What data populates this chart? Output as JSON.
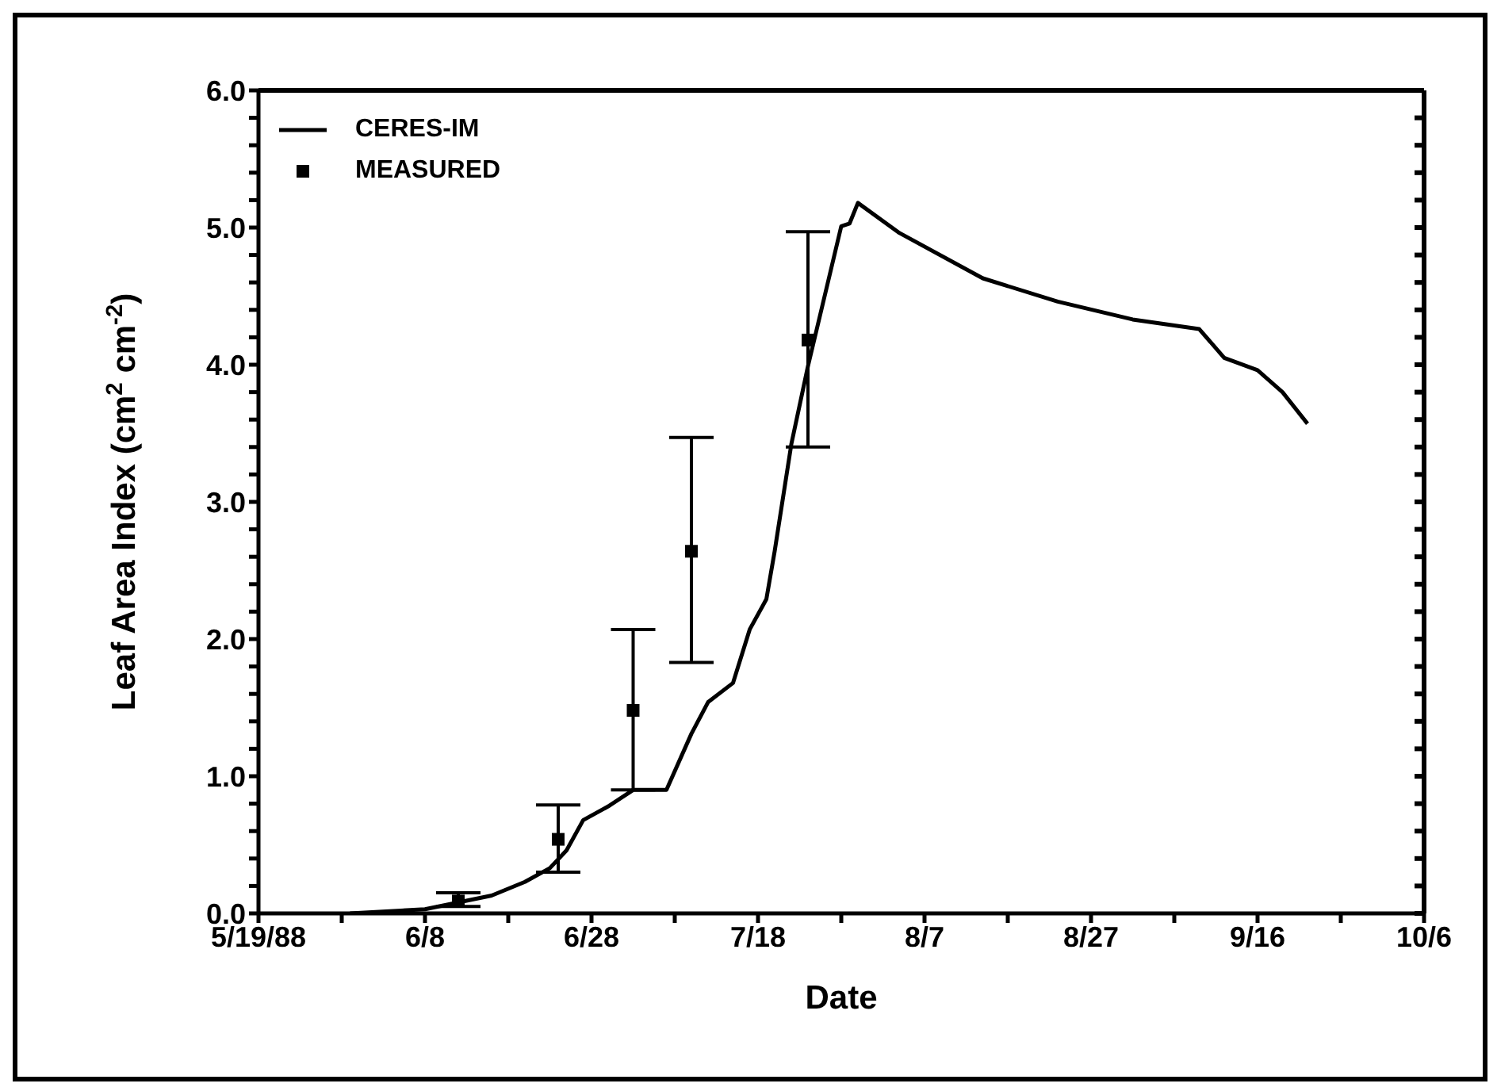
{
  "chart_data": {
    "type": "line",
    "xlabel": "Date",
    "ylabel": "Leaf Area Index (cm$^{2}$ cm$^{-2}$)",
    "xlim": [
      "1988-05-19",
      "1988-10-06"
    ],
    "xticks": [
      {
        "value": "1988-05-19",
        "label": "5/19/88"
      },
      {
        "value": "1988-05-29",
        "label": null
      },
      {
        "value": "1988-06-08",
        "label": "6/8"
      },
      {
        "value": "1988-06-18",
        "label": null
      },
      {
        "value": "1988-06-28",
        "label": "6/28"
      },
      {
        "value": "1988-07-08",
        "label": null
      },
      {
        "value": "1988-07-18",
        "label": "7/18"
      },
      {
        "value": "1988-07-28",
        "label": null
      },
      {
        "value": "1988-08-07",
        "label": "8/7"
      },
      {
        "value": "1988-08-17",
        "label": null
      },
      {
        "value": "1988-08-27",
        "label": "8/27"
      },
      {
        "value": "1988-09-06",
        "label": null
      },
      {
        "value": "1988-09-16",
        "label": "9/16"
      },
      {
        "value": "1988-09-26",
        "label": null
      },
      {
        "value": "1988-10-06",
        "label": "10/6"
      }
    ],
    "ylim": [
      0,
      6
    ],
    "yticks": [
      {
        "value": 0,
        "label": "0.0"
      },
      {
        "value": 0.2,
        "label": null
      },
      {
        "value": 0.4,
        "label": null
      },
      {
        "value": 0.6,
        "label": null
      },
      {
        "value": 0.8,
        "label": null
      },
      {
        "value": 1,
        "label": "1.0"
      },
      {
        "value": 1.2,
        "label": null
      },
      {
        "value": 1.4,
        "label": null
      },
      {
        "value": 1.6,
        "label": null
      },
      {
        "value": 1.8,
        "label": null
      },
      {
        "value": 2,
        "label": "2.0"
      },
      {
        "value": 2.2,
        "label": null
      },
      {
        "value": 2.4,
        "label": null
      },
      {
        "value": 2.6,
        "label": null
      },
      {
        "value": 2.8,
        "label": null
      },
      {
        "value": 3,
        "label": "3.0"
      },
      {
        "value": 3.2,
        "label": null
      },
      {
        "value": 3.4,
        "label": null
      },
      {
        "value": 3.6,
        "label": null
      },
      {
        "value": 3.8,
        "label": null
      },
      {
        "value": 4,
        "label": "4.0"
      },
      {
        "value": 4.2,
        "label": null
      },
      {
        "value": 4.4,
        "label": null
      },
      {
        "value": 4.6,
        "label": null
      },
      {
        "value": 4.8,
        "label": null
      },
      {
        "value": 5,
        "label": "5.0"
      },
      {
        "value": 5.2,
        "label": null
      },
      {
        "value": 5.4,
        "label": null
      },
      {
        "value": 5.6,
        "label": null
      },
      {
        "value": 5.8,
        "label": null
      },
      {
        "value": 6,
        "label": "6.0"
      }
    ],
    "grid": false,
    "legend": "top left",
    "series": [
      {
        "name": "CERES-IM",
        "color": "#000000",
        "marker": "none",
        "line_style": "solid",
        "x": [
          "1988-05-30",
          "1988-06-08",
          "1988-06-16",
          "1988-06-20",
          "1988-06-23",
          "1988-06-25",
          "1988-06-27",
          "1988-06-30",
          "1988-07-03",
          "1988-07-07",
          "1988-07-10",
          "1988-07-12",
          "1988-07-15",
          "1988-07-17",
          "1988-07-19",
          "1988-07-20",
          "1988-07-22",
          "1988-07-24",
          "1988-07-28",
          "1988-07-29",
          "1988-07-30",
          "1988-08-04",
          "1988-08-14",
          "1988-08-23",
          "1988-09-01",
          "1988-09-09",
          "1988-09-12",
          "1988-09-16",
          "1988-09-19",
          "1988-09-22"
        ],
        "values": [
          0.0,
          0.03,
          0.13,
          0.23,
          0.33,
          0.46,
          0.68,
          0.78,
          0.9,
          0.9,
          1.31,
          1.54,
          1.68,
          2.07,
          2.29,
          2.64,
          3.42,
          3.99,
          5.01,
          5.03,
          5.18,
          4.96,
          4.63,
          4.46,
          4.33,
          4.26,
          4.05,
          3.96,
          3.8,
          3.57
        ]
      },
      {
        "name": "MEASURED",
        "type": "scatter",
        "color": "#000000",
        "marker": "square",
        "x": [
          "1988-06-12",
          "1988-06-24",
          "1988-07-03",
          "1988-07-10",
          "1988-07-24"
        ],
        "values": [
          0.09,
          0.54,
          1.48,
          2.64,
          4.18
        ],
        "errors": [
          [
            0.05,
            0.15
          ],
          [
            0.3,
            0.79
          ],
          [
            0.9,
            2.07
          ],
          [
            1.83,
            3.47
          ],
          [
            3.4,
            4.97
          ]
        ]
      }
    ]
  }
}
